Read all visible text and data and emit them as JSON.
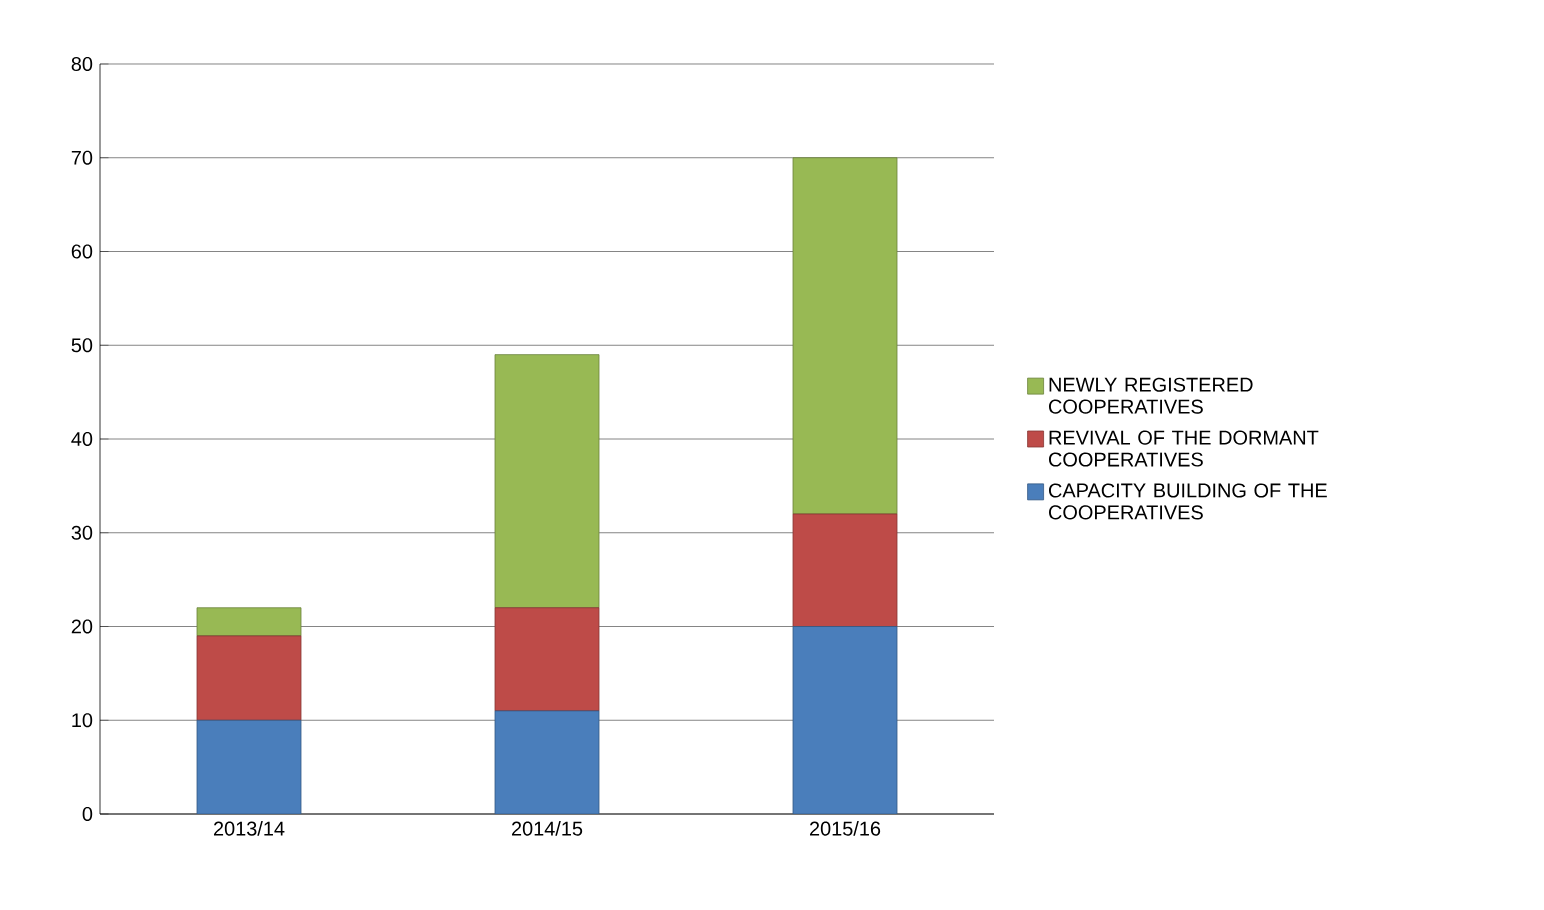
{
  "chart_data": {
    "type": "bar",
    "stacked": true,
    "categories": [
      "2013/14",
      "2014/15",
      "2015/16"
    ],
    "series": [
      {
        "name": "CAPACITY BUILDING OF THE COOPERATIVES",
        "color": "#4a7ebb",
        "values": [
          10,
          11,
          20
        ]
      },
      {
        "name": "REVIVAL OF THE DORMANT COOPERATIVES",
        "color": "#be4b48",
        "values": [
          9,
          11,
          12
        ]
      },
      {
        "name": "NEWLY REGISTERED COOPERATIVES",
        "color": "#98b954",
        "values": [
          3,
          27,
          38
        ]
      }
    ],
    "ylim": [
      0,
      80
    ],
    "yticks": [
      0,
      10,
      20,
      30,
      40,
      50,
      60,
      70,
      80
    ],
    "grid": "y",
    "legend": "right"
  }
}
